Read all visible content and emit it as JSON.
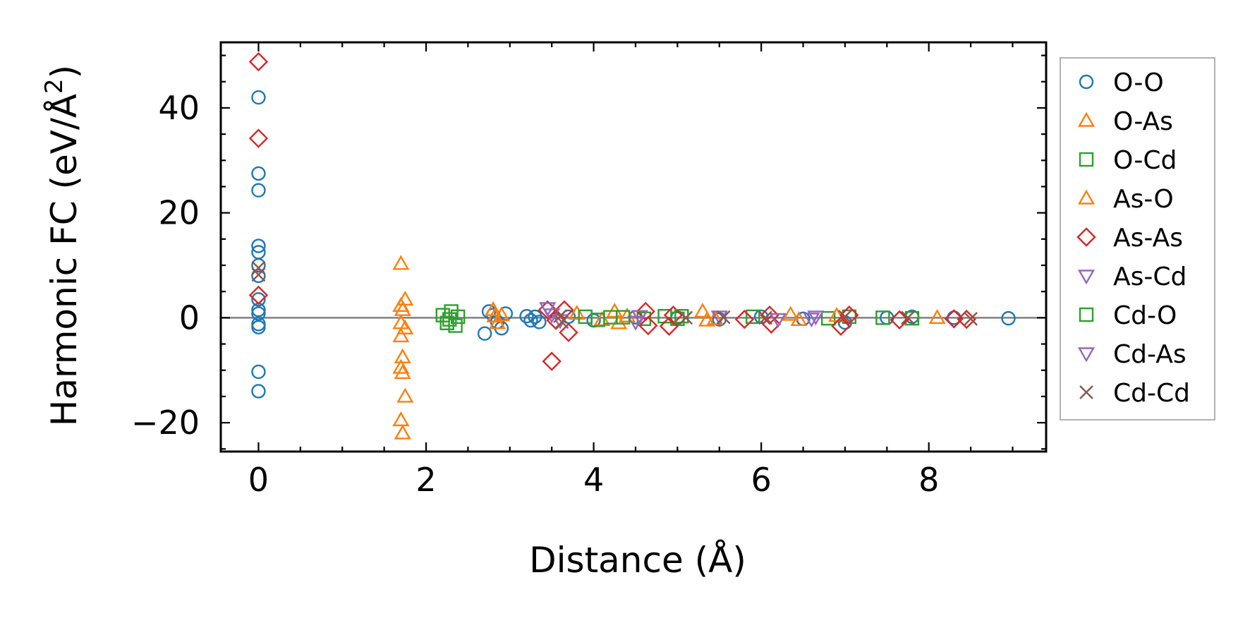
{
  "chart_data": {
    "type": "scatter",
    "xlabel": "Distance (Å)",
    "ylabel_main": "Harmonic FC (eV/Å",
    "ylabel_sup": "2",
    "ylabel_close": ")",
    "xlim": [
      -0.45,
      9.4
    ],
    "ylim": [
      -25.5,
      52.5
    ],
    "xticks": [
      0,
      2,
      4,
      6,
      8
    ],
    "xtick_labels": [
      "0",
      "2",
      "4",
      "6",
      "8"
    ],
    "yticks": [
      -20,
      0,
      20,
      40
    ],
    "ytick_labels": [
      "−20",
      "0",
      "20",
      "40"
    ],
    "zero_line": 0,
    "legend_position": "outside-right",
    "series": [
      {
        "name": "O-O",
        "marker": "circle",
        "color": "#1f77b4",
        "points": [
          [
            0,
            42
          ],
          [
            0,
            27.5
          ],
          [
            0,
            24.3
          ],
          [
            0,
            13.7
          ],
          [
            0,
            12.5
          ],
          [
            0,
            10
          ],
          [
            0,
            8
          ],
          [
            0,
            3.5
          ],
          [
            0,
            1.5
          ],
          [
            0,
            0.8
          ],
          [
            0,
            -1.2
          ],
          [
            0,
            -1.8
          ],
          [
            0,
            -10.3
          ],
          [
            0,
            -14
          ],
          [
            2.7,
            -3
          ],
          [
            2.75,
            1.2
          ],
          [
            2.8,
            0.5
          ],
          [
            2.85,
            -0.8
          ],
          [
            2.9,
            -2
          ],
          [
            2.95,
            0.8
          ],
          [
            3.2,
            0.3
          ],
          [
            3.25,
            -0.5
          ],
          [
            3.3,
            0.2
          ],
          [
            3.35,
            -0.8
          ],
          [
            3.7,
            0.2
          ],
          [
            4.0,
            -0.5
          ],
          [
            4.5,
            0.1
          ],
          [
            5.0,
            0
          ],
          [
            5.5,
            -0.3
          ],
          [
            6.0,
            0.2
          ],
          [
            6.5,
            -0.2
          ],
          [
            7.0,
            -0.9
          ],
          [
            7.5,
            0
          ],
          [
            7.8,
            0.2
          ],
          [
            8.3,
            0
          ],
          [
            8.95,
            -0.1
          ]
        ]
      },
      {
        "name": "O-As",
        "marker": "triangle-up",
        "color": "#ff7f0e",
        "points": [
          [
            1.7,
            10.3
          ],
          [
            1.7,
            2.3
          ],
          [
            1.75,
            3.5
          ],
          [
            1.72,
            1.5
          ],
          [
            1.7,
            -1
          ],
          [
            1.75,
            -2
          ],
          [
            1.7,
            -3.5
          ],
          [
            1.72,
            -7.5
          ],
          [
            1.7,
            -9.5
          ],
          [
            1.72,
            -10.5
          ],
          [
            1.75,
            -15
          ],
          [
            1.7,
            -19.5
          ],
          [
            1.72,
            -22
          ],
          [
            2.8,
            1.5
          ],
          [
            2.85,
            -1
          ],
          [
            2.9,
            0.5
          ],
          [
            3.8,
            0.8
          ],
          [
            4.1,
            -0.4
          ],
          [
            4.25,
            1.2
          ],
          [
            4.3,
            -1
          ],
          [
            5.3,
            1.2
          ],
          [
            5.35,
            -0.5
          ],
          [
            6.35,
            0.6
          ],
          [
            6.45,
            -0.4
          ],
          [
            8.1,
            0
          ]
        ]
      },
      {
        "name": "O-Cd",
        "marker": "square",
        "color": "#2ca02c",
        "points": [
          [
            2.2,
            0.5
          ],
          [
            2.25,
            -1
          ],
          [
            2.3,
            1.2
          ],
          [
            2.35,
            -1.5
          ],
          [
            2.38,
            0.2
          ],
          [
            3.9,
            0.2
          ],
          [
            4.05,
            -0.4
          ],
          [
            4.2,
            0.1
          ],
          [
            4.6,
            -0.2
          ],
          [
            4.85,
            0.3
          ],
          [
            5.0,
            -0.2
          ],
          [
            5.9,
            0.2
          ],
          [
            6.8,
            -0.1
          ],
          [
            7.05,
            0.2
          ],
          [
            7.45,
            0
          ],
          [
            7.8,
            -0.1
          ]
        ]
      },
      {
        "name": "As-O",
        "marker": "triangle-up",
        "color": "#ff7f0e",
        "points": [
          [
            2.82,
            0.3
          ],
          [
            4.4,
            0.3
          ],
          [
            5.45,
            -0.2
          ],
          [
            6.9,
            0.4
          ]
        ]
      },
      {
        "name": "As-As",
        "marker": "diamond",
        "color": "#d62728",
        "points": [
          [
            0,
            48.8
          ],
          [
            0,
            34.2
          ],
          [
            0,
            4.3
          ],
          [
            3.45,
            1.5
          ],
          [
            3.5,
            -8.3
          ],
          [
            3.55,
            -0.5
          ],
          [
            3.7,
            -2.8
          ],
          [
            3.65,
            1.5
          ],
          [
            4.62,
            1.2
          ],
          [
            4.65,
            -1.5
          ],
          [
            4.9,
            -1.6
          ],
          [
            4.95,
            0.5
          ],
          [
            5.8,
            -0.3
          ],
          [
            6.1,
            0.5
          ],
          [
            6.12,
            -1.2
          ],
          [
            6.95,
            -1.6
          ],
          [
            7.05,
            0.5
          ],
          [
            7.65,
            -0.4
          ],
          [
            8.3,
            -0.2
          ],
          [
            8.45,
            -0.3
          ]
        ]
      },
      {
        "name": "As-Cd",
        "marker": "triangle-down",
        "color": "#9467bd",
        "points": [
          [
            3.45,
            1.8
          ],
          [
            3.6,
            -0.5
          ],
          [
            4.55,
            0.3
          ],
          [
            4.5,
            -0.8
          ],
          [
            5.5,
            0.2
          ],
          [
            6.2,
            -0.3
          ],
          [
            6.65,
            0.2
          ]
        ]
      },
      {
        "name": "Cd-O",
        "marker": "square",
        "color": "#2ca02c",
        "points": [
          [
            2.28,
            -0.3
          ],
          [
            4.35,
            0.1
          ],
          [
            5.05,
            0.3
          ]
        ]
      },
      {
        "name": "Cd-As",
        "marker": "triangle-down",
        "color": "#9467bd",
        "points": [
          [
            3.5,
            0.6
          ],
          [
            4.55,
            0.3
          ],
          [
            6.6,
            -0.2
          ]
        ]
      },
      {
        "name": "Cd-Cd",
        "marker": "x",
        "color": "#8c564b",
        "points": [
          [
            0,
            9.5
          ],
          [
            0,
            8.2
          ],
          [
            3.6,
            0.3
          ],
          [
            3.62,
            -0.8
          ],
          [
            5.1,
            0
          ],
          [
            5.55,
            0.1
          ],
          [
            6.05,
            0
          ],
          [
            7.0,
            0.2
          ],
          [
            7.75,
            0
          ],
          [
            8.5,
            -0.2
          ]
        ]
      }
    ]
  }
}
